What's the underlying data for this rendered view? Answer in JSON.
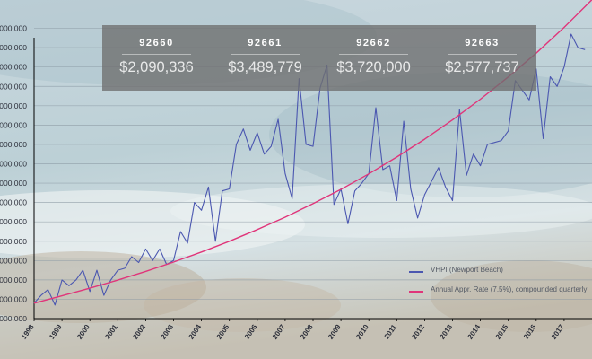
{
  "colors": {
    "vhpi_series": "#4b57b0",
    "appreciation_series": "#e0357a",
    "panel_bg": "rgba(110,110,110,0.78)",
    "grid": "#8c9aa4",
    "axis_text": "#2c2f3a"
  },
  "stats": [
    {
      "zip": "92660",
      "value": "$2,090,336"
    },
    {
      "zip": "92661",
      "value": "$3,489,779"
    },
    {
      "zip": "92662",
      "value": "$3,720,000"
    },
    {
      "zip": "92663",
      "value": "$2,577,737"
    }
  ],
  "legend": {
    "items": [
      {
        "label": "VHPI (Newport Beach)",
        "color": "#4b57b0"
      },
      {
        "label": "Annual Appr. Rate (7.5%), compounded quarterly",
        "color": "#e0357a"
      }
    ]
  },
  "chart_data": {
    "type": "line",
    "background": "aerial ocean photo",
    "grid": true,
    "legend_position": "bottom-right",
    "xlabel": "",
    "ylabel": "",
    "x_range": [
      1998,
      2018
    ],
    "ylim": [
      400000,
      2000000
    ],
    "x_ticks": [
      "1998",
      "1999",
      "2000",
      "2001",
      "2002",
      "2003",
      "2004",
      "2005",
      "2006",
      "2007",
      "2008",
      "2009",
      "2010",
      "2011",
      "2012",
      "2013",
      "2014",
      "2015",
      "2016",
      "2017"
    ],
    "y_ticks": [
      {
        "value": 400000,
        "label": ",000,000"
      },
      {
        "value": 500000,
        "label": ",000,000"
      },
      {
        "value": 600000,
        "label": ",000,000"
      },
      {
        "value": 700000,
        "label": ",000,000"
      },
      {
        "value": 800000,
        "label": ",000,000"
      },
      {
        "value": 900000,
        "label": ",000,000"
      },
      {
        "value": 1000000,
        "label": ",000,000"
      },
      {
        "value": 1100000,
        "label": ",000,000"
      },
      {
        "value": 1200000,
        "label": ",000,000"
      },
      {
        "value": 1300000,
        "label": ",000,000"
      },
      {
        "value": 1400000,
        "label": ",000,000"
      },
      {
        "value": 1500000,
        "label": ",000,000"
      },
      {
        "value": 1600000,
        "label": ",000,000"
      },
      {
        "value": 1700000,
        "label": ",000,000"
      },
      {
        "value": 1800000,
        "label": ",000,000"
      },
      {
        "value": 1900000,
        "label": ",000,000"
      }
    ],
    "series": [
      {
        "name": "VHPI (Newport Beach)",
        "x": [
          1998.0,
          1998.25,
          1998.5,
          1998.75,
          1999.0,
          1999.25,
          1999.5,
          1999.75,
          2000.0,
          2000.25,
          2000.5,
          2000.75,
          2001.0,
          2001.25,
          2001.5,
          2001.75,
          2002.0,
          2002.25,
          2002.5,
          2002.75,
          2003.0,
          2003.25,
          2003.5,
          2003.75,
          2004.0,
          2004.25,
          2004.5,
          2004.75,
          2005.0,
          2005.25,
          2005.5,
          2005.75,
          2006.0,
          2006.25,
          2006.5,
          2006.75,
          2007.0,
          2007.25,
          2007.5,
          2007.75,
          2008.0,
          2008.25,
          2008.5,
          2008.75,
          2009.0,
          2009.25,
          2009.5,
          2009.75,
          2010.0,
          2010.25,
          2010.5,
          2010.75,
          2011.0,
          2011.25,
          2011.5,
          2011.75,
          2012.0,
          2012.25,
          2012.5,
          2012.75,
          2013.0,
          2013.25,
          2013.5,
          2013.75,
          2014.0,
          2014.25,
          2014.5,
          2014.75,
          2015.0,
          2015.25,
          2015.5,
          2015.75,
          2016.0,
          2016.25,
          2016.5,
          2016.75,
          2017.0,
          2017.25,
          2017.5,
          2017.75
        ],
        "y": [
          480000,
          520000,
          550000,
          470000,
          600000,
          570000,
          600000,
          650000,
          540000,
          650000,
          520000,
          600000,
          650000,
          660000,
          720000,
          690000,
          760000,
          700000,
          760000,
          680000,
          700000,
          850000,
          790000,
          1000000,
          960000,
          1080000,
          800000,
          1060000,
          1070000,
          1300000,
          1380000,
          1270000,
          1360000,
          1250000,
          1290000,
          1430000,
          1150000,
          1020000,
          1640000,
          1300000,
          1290000,
          1590000,
          1710000,
          990000,
          1070000,
          890000,
          1060000,
          1100000,
          1150000,
          1490000,
          1170000,
          1190000,
          1010000,
          1420000,
          1070000,
          920000,
          1040000,
          1110000,
          1180000,
          1080000,
          1010000,
          1480000,
          1140000,
          1250000,
          1190000,
          1300000,
          1310000,
          1320000,
          1370000,
          1630000,
          1580000,
          1530000,
          1690000,
          1330000,
          1650000,
          1600000,
          1700000,
          1870000,
          1800000,
          1790000
        ]
      },
      {
        "name": "Annual Appr. Rate (7.5%), compounded quarterly",
        "x": [
          1998,
          1999,
          2000,
          2001,
          2002,
          2003,
          2004,
          2005,
          2006,
          2007,
          2008,
          2009,
          2010,
          2011,
          2012,
          2013,
          2014,
          2015,
          2016,
          2017,
          2018
        ],
        "y": [
          480000,
          518000,
          557000,
          599000,
          644000,
          692000,
          744000,
          800000,
          860000,
          924000,
          994000,
          1068000,
          1148000,
          1235000,
          1327000,
          1427000,
          1534000,
          1649000,
          1772000,
          1905000,
          2048000
        ]
      }
    ]
  }
}
